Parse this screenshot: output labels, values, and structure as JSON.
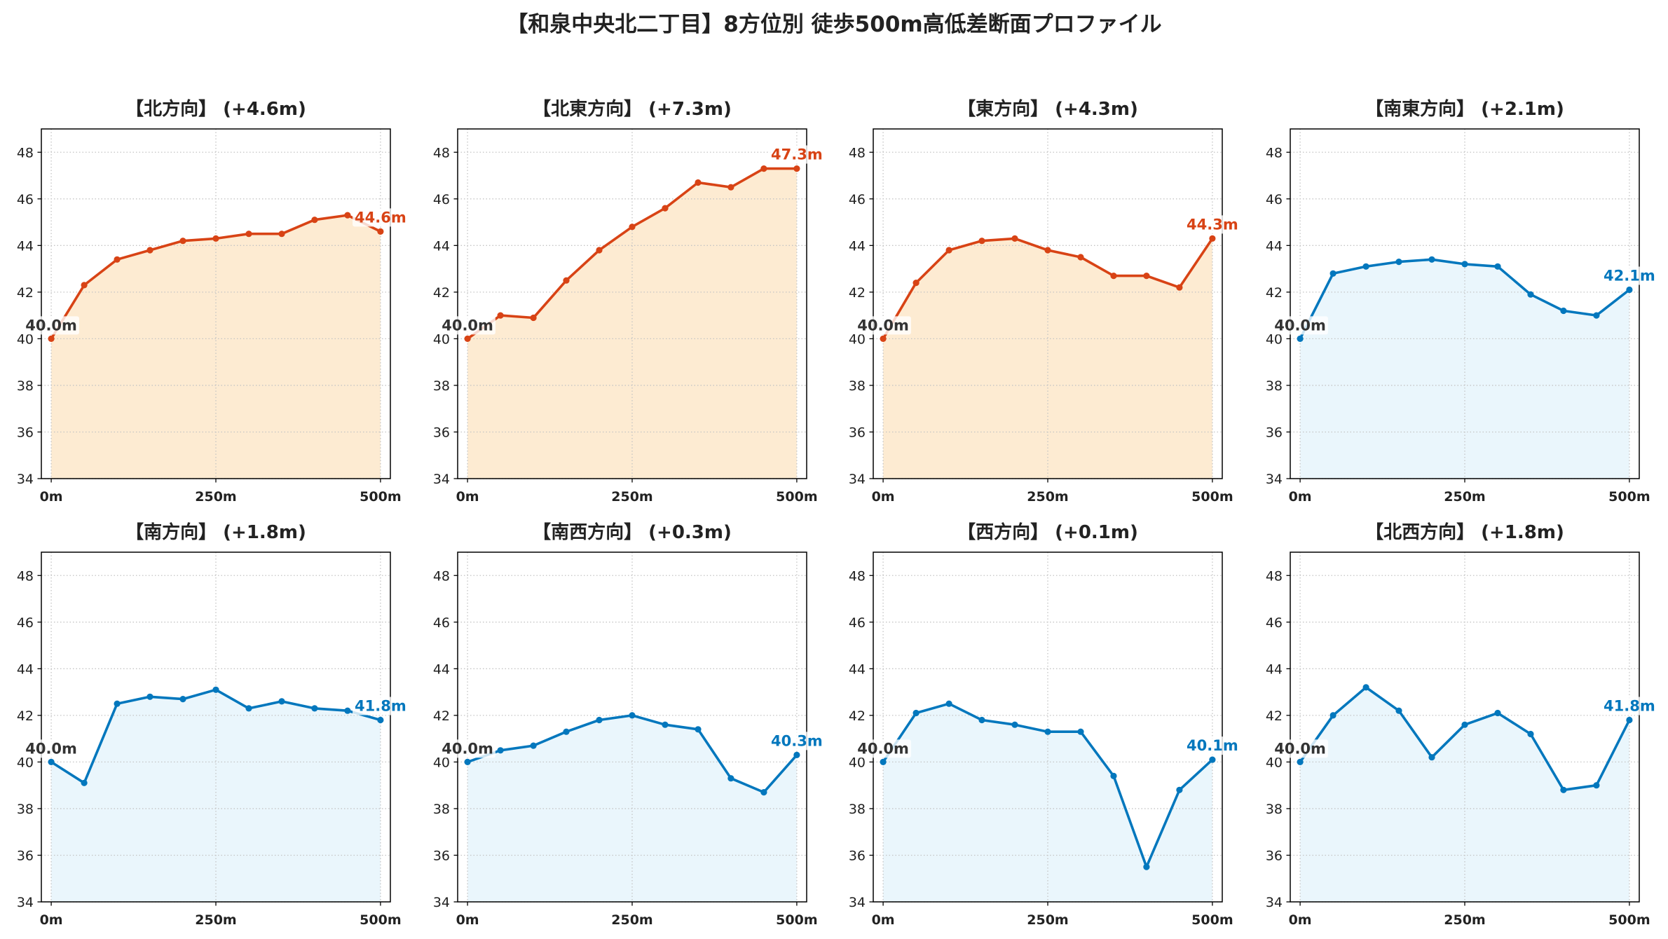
{
  "figure": {
    "title": "【和泉中央北二丁目】8方位別 徒歩500m高低差断面プロファイル"
  },
  "chart_data": [
    {
      "type": "line",
      "title": "【北方向】 (+4.6m)",
      "x": [
        0,
        50,
        100,
        150,
        200,
        250,
        300,
        350,
        400,
        450,
        500
      ],
      "values": [
        40.0,
        42.3,
        43.4,
        43.8,
        44.2,
        44.3,
        44.5,
        44.5,
        45.1,
        45.3,
        44.6
      ],
      "x_ticks": [
        0,
        250,
        500
      ],
      "x_tick_labels": [
        "0m",
        "250m",
        "500m"
      ],
      "y_ticks": [
        34,
        36,
        38,
        40,
        42,
        44,
        46,
        48
      ],
      "xlim": [
        -15,
        515
      ],
      "ylim": [
        34,
        49
      ],
      "grid": true,
      "color": "#d84315",
      "fill_color": "#fdebd2",
      "start_label": "40.0m",
      "start_label_color": "#333333",
      "end_label": "44.6m"
    },
    {
      "type": "line",
      "title": "【北東方向】 (+7.3m)",
      "x": [
        0,
        50,
        100,
        150,
        200,
        250,
        300,
        350,
        400,
        450,
        500
      ],
      "values": [
        40.0,
        41.0,
        40.9,
        42.5,
        43.8,
        44.8,
        45.6,
        46.7,
        46.5,
        47.3,
        47.3
      ],
      "x_ticks": [
        0,
        250,
        500
      ],
      "x_tick_labels": [
        "0m",
        "250m",
        "500m"
      ],
      "y_ticks": [
        34,
        36,
        38,
        40,
        42,
        44,
        46,
        48
      ],
      "xlim": [
        -15,
        515
      ],
      "ylim": [
        34,
        49
      ],
      "grid": true,
      "color": "#d84315",
      "fill_color": "#fdebd2",
      "start_label": "40.0m",
      "start_label_color": "#333333",
      "end_label": "47.3m"
    },
    {
      "type": "line",
      "title": "【東方向】 (+4.3m)",
      "x": [
        0,
        50,
        100,
        150,
        200,
        250,
        300,
        350,
        400,
        450,
        500
      ],
      "values": [
        40.0,
        42.4,
        43.8,
        44.2,
        44.3,
        43.8,
        43.5,
        42.7,
        42.7,
        42.2,
        44.3
      ],
      "x_ticks": [
        0,
        250,
        500
      ],
      "x_tick_labels": [
        "0m",
        "250m",
        "500m"
      ],
      "y_ticks": [
        34,
        36,
        38,
        40,
        42,
        44,
        46,
        48
      ],
      "xlim": [
        -15,
        515
      ],
      "ylim": [
        34,
        49
      ],
      "grid": true,
      "color": "#d84315",
      "fill_color": "#fdebd2",
      "start_label": "40.0m",
      "start_label_color": "#333333",
      "end_label": "44.3m"
    },
    {
      "type": "line",
      "title": "【南東方向】 (+2.1m)",
      "x": [
        0,
        50,
        100,
        150,
        200,
        250,
        300,
        350,
        400,
        450,
        500
      ],
      "values": [
        40.0,
        42.8,
        43.1,
        43.3,
        43.4,
        43.2,
        43.1,
        41.9,
        41.2,
        41.0,
        42.1
      ],
      "x_ticks": [
        0,
        250,
        500
      ],
      "x_tick_labels": [
        "0m",
        "250m",
        "500m"
      ],
      "y_ticks": [
        34,
        36,
        38,
        40,
        42,
        44,
        46,
        48
      ],
      "xlim": [
        -15,
        515
      ],
      "ylim": [
        34,
        49
      ],
      "grid": true,
      "color": "#0277bd",
      "fill_color": "#eaf6fc",
      "start_label": "40.0m",
      "start_label_color": "#333333",
      "end_label": "42.1m"
    },
    {
      "type": "line",
      "title": "【南方向】 (+1.8m)",
      "x": [
        0,
        50,
        100,
        150,
        200,
        250,
        300,
        350,
        400,
        450,
        500
      ],
      "values": [
        40.0,
        39.1,
        42.5,
        42.8,
        42.7,
        43.1,
        42.3,
        42.6,
        42.3,
        42.2,
        41.8
      ],
      "x_ticks": [
        0,
        250,
        500
      ],
      "x_tick_labels": [
        "0m",
        "250m",
        "500m"
      ],
      "y_ticks": [
        34,
        36,
        38,
        40,
        42,
        44,
        46,
        48
      ],
      "xlim": [
        -15,
        515
      ],
      "ylim": [
        34,
        49
      ],
      "grid": true,
      "color": "#0277bd",
      "fill_color": "#eaf6fc",
      "start_label": "40.0m",
      "start_label_color": "#333333",
      "end_label": "41.8m"
    },
    {
      "type": "line",
      "title": "【南西方向】 (+0.3m)",
      "x": [
        0,
        50,
        100,
        150,
        200,
        250,
        300,
        350,
        400,
        450,
        500
      ],
      "values": [
        40.0,
        40.5,
        40.7,
        41.3,
        41.8,
        42.0,
        41.6,
        41.4,
        39.3,
        38.7,
        40.3
      ],
      "x_ticks": [
        0,
        250,
        500
      ],
      "x_tick_labels": [
        "0m",
        "250m",
        "500m"
      ],
      "y_ticks": [
        34,
        36,
        38,
        40,
        42,
        44,
        46,
        48
      ],
      "xlim": [
        -15,
        515
      ],
      "ylim": [
        34,
        49
      ],
      "grid": true,
      "color": "#0277bd",
      "fill_color": "#eaf6fc",
      "start_label": "40.0m",
      "start_label_color": "#333333",
      "end_label": "40.3m"
    },
    {
      "type": "line",
      "title": "【西方向】 (+0.1m)",
      "x": [
        0,
        50,
        100,
        150,
        200,
        250,
        300,
        350,
        400,
        450,
        500
      ],
      "values": [
        40.0,
        42.1,
        42.5,
        41.8,
        41.6,
        41.3,
        41.3,
        39.4,
        35.5,
        38.8,
        40.1
      ],
      "x_ticks": [
        0,
        250,
        500
      ],
      "x_tick_labels": [
        "0m",
        "250m",
        "500m"
      ],
      "y_ticks": [
        34,
        36,
        38,
        40,
        42,
        44,
        46,
        48
      ],
      "xlim": [
        -15,
        515
      ],
      "ylim": [
        34,
        49
      ],
      "grid": true,
      "color": "#0277bd",
      "fill_color": "#eaf6fc",
      "start_label": "40.0m",
      "start_label_color": "#333333",
      "end_label": "40.1m"
    },
    {
      "type": "line",
      "title": "【北西方向】 (+1.8m)",
      "x": [
        0,
        50,
        100,
        150,
        200,
        250,
        300,
        350,
        400,
        450,
        500
      ],
      "values": [
        40.0,
        42.0,
        43.2,
        42.2,
        40.2,
        41.6,
        42.1,
        41.2,
        38.8,
        39.0,
        41.8
      ],
      "x_ticks": [
        0,
        250,
        500
      ],
      "x_tick_labels": [
        "0m",
        "250m",
        "500m"
      ],
      "y_ticks": [
        34,
        36,
        38,
        40,
        42,
        44,
        46,
        48
      ],
      "xlim": [
        -15,
        515
      ],
      "ylim": [
        34,
        49
      ],
      "grid": true,
      "color": "#0277bd",
      "fill_color": "#eaf6fc",
      "start_label": "40.0m",
      "start_label_color": "#333333",
      "end_label": "41.8m"
    }
  ]
}
